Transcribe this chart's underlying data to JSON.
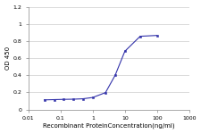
{
  "x_data": [
    0.031,
    0.063,
    0.125,
    0.25,
    0.5,
    1.0,
    2.5,
    5,
    10,
    30,
    100
  ],
  "y_data": [
    0.112,
    0.115,
    0.118,
    0.12,
    0.125,
    0.14,
    0.197,
    0.4,
    0.68,
    0.855,
    0.865
  ],
  "line_color": "#3333aa",
  "marker_color": "#3333aa",
  "xlabel": "Recombinant ProteinConcentration(ng/ml)",
  "ylabel": "OD 450",
  "ylim": [
    0,
    1.2
  ],
  "yticks": [
    0,
    0.2,
    0.4,
    0.6,
    0.8,
    1,
    1.2
  ],
  "ytick_labels": [
    "0",
    "0.2",
    "0.4",
    "0.6",
    "0.8",
    "1",
    "1.2"
  ],
  "xtick_vals": [
    0.01,
    0.1,
    1,
    10,
    100,
    1000
  ],
  "xtick_labels": [
    "0.01",
    "0.1",
    "1",
    "10",
    "100",
    "1000"
  ],
  "bg_color": "#ffffff",
  "grid_color": "#cccccc",
  "label_fontsize": 5.0,
  "tick_fontsize": 4.5
}
